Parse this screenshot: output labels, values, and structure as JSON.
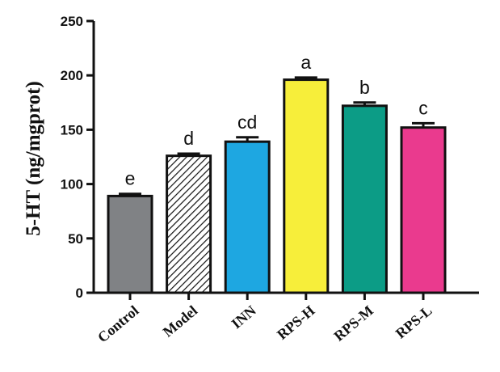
{
  "chart_data": {
    "type": "bar",
    "title": "",
    "xlabel": "",
    "ylabel": "5-HT (ng/mgprot)",
    "ylim": [
      0,
      250
    ],
    "yticks": [
      0,
      50,
      100,
      150,
      200,
      250
    ],
    "grid": false,
    "legend": "none",
    "categories": [
      "Control",
      "Model",
      "INN",
      "RPS-H",
      "RPS-M",
      "RPS-L"
    ],
    "values": [
      89,
      126,
      139,
      196,
      172,
      152
    ],
    "errors": [
      2,
      2,
      4,
      2,
      3,
      4
    ],
    "significance_labels": [
      "e",
      "d",
      "cd",
      "a",
      "b",
      "c"
    ],
    "bar_colors": [
      "#808285",
      "#ffffff",
      "#1ea7e1",
      "#f7ee3a",
      "#0c9c86",
      "#ea3a8e"
    ],
    "bar_patterns": [
      "solid",
      "diagonal-hatch",
      "solid",
      "solid",
      "solid",
      "solid"
    ]
  }
}
